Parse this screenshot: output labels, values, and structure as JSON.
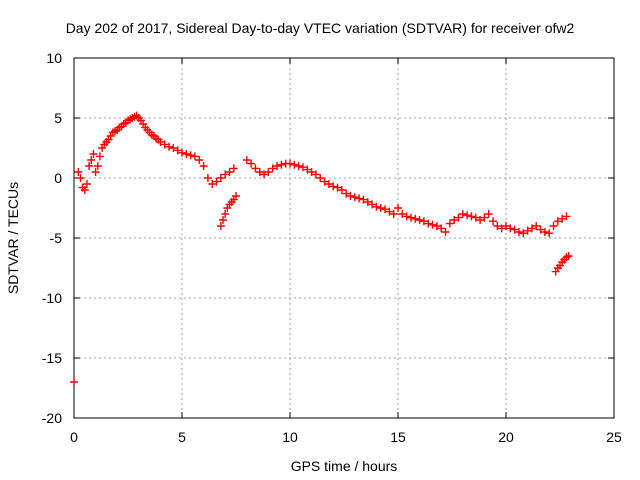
{
  "chart_data": {
    "type": "scatter",
    "title": "Day 202 of 2017, Sidereal Day-to-day VTEC variation (SDTVAR) for receiver ofw2",
    "xlabel": "GPS time / hours",
    "ylabel": "SDTVAR / TECUs",
    "xlim": [
      0,
      25
    ],
    "ylim": [
      -20,
      10
    ],
    "xticks": [
      0,
      5,
      10,
      15,
      20,
      25
    ],
    "yticks": [
      -20,
      -15,
      -10,
      -5,
      0,
      5,
      10
    ],
    "grid": true,
    "marker": "+",
    "series": [
      {
        "name": "SDTVAR",
        "color": "#ff0000",
        "x": [
          0.0,
          0.2,
          0.3,
          0.4,
          0.5,
          0.6,
          0.7,
          0.8,
          0.9,
          1.0,
          1.1,
          1.2,
          1.3,
          1.4,
          1.5,
          1.6,
          1.7,
          1.8,
          1.9,
          2.0,
          2.1,
          2.2,
          2.3,
          2.4,
          2.5,
          2.6,
          2.7,
          2.8,
          2.9,
          3.0,
          3.1,
          3.2,
          3.3,
          3.4,
          3.5,
          3.6,
          3.7,
          3.8,
          3.9,
          4.0,
          4.2,
          4.4,
          4.6,
          4.8,
          5.0,
          5.2,
          5.4,
          5.6,
          5.8,
          6.0,
          6.2,
          6.4,
          6.6,
          6.8,
          7.0,
          7.2,
          7.4,
          6.8,
          6.9,
          7.0,
          7.1,
          7.2,
          7.3,
          7.4,
          7.5,
          8.0,
          8.2,
          8.4,
          8.6,
          8.8,
          9.0,
          9.2,
          9.4,
          9.6,
          9.8,
          10.0,
          10.2,
          10.4,
          10.6,
          10.8,
          11.0,
          11.2,
          11.4,
          11.6,
          11.8,
          12.0,
          12.2,
          12.4,
          12.6,
          12.8,
          13.0,
          13.2,
          13.4,
          13.6,
          13.8,
          14.0,
          14.2,
          14.4,
          14.6,
          14.8,
          15.0,
          15.2,
          15.4,
          15.6,
          15.8,
          16.0,
          16.2,
          16.4,
          16.6,
          16.8,
          17.0,
          17.2,
          17.4,
          17.6,
          17.8,
          18.0,
          18.2,
          18.4,
          18.6,
          18.8,
          19.0,
          19.2,
          19.4,
          19.6,
          19.8,
          20.0,
          20.2,
          20.4,
          20.6,
          20.8,
          21.0,
          21.2,
          21.4,
          21.6,
          21.8,
          22.0,
          22.2,
          22.4,
          22.6,
          22.8,
          22.3,
          22.4,
          22.5,
          22.6,
          22.7,
          22.8,
          22.9
        ],
        "y": [
          -17.0,
          0.5,
          0.0,
          -0.8,
          -1.0,
          -0.5,
          1.0,
          1.5,
          2.0,
          0.5,
          1.0,
          1.8,
          2.5,
          2.8,
          3.0,
          3.2,
          3.5,
          3.8,
          3.9,
          4.0,
          4.2,
          4.3,
          4.5,
          4.6,
          4.8,
          4.9,
          5.0,
          5.1,
          5.2,
          5.0,
          4.8,
          4.5,
          4.2,
          4.0,
          3.8,
          3.6,
          3.5,
          3.3,
          3.2,
          3.0,
          2.8,
          2.6,
          2.5,
          2.3,
          2.1,
          2.0,
          1.9,
          1.8,
          1.5,
          1.0,
          0.0,
          -0.5,
          -0.3,
          0.0,
          0.3,
          0.5,
          0.8,
          -4.0,
          -3.5,
          -3.0,
          -2.5,
          -2.2,
          -2.0,
          -1.8,
          -1.5,
          1.5,
          1.2,
          0.8,
          0.5,
          0.3,
          0.5,
          0.8,
          1.0,
          1.1,
          1.2,
          1.2,
          1.1,
          1.0,
          0.9,
          0.7,
          0.5,
          0.3,
          0.0,
          -0.3,
          -0.5,
          -0.7,
          -0.8,
          -1.0,
          -1.3,
          -1.5,
          -1.6,
          -1.7,
          -1.8,
          -2.0,
          -2.2,
          -2.4,
          -2.5,
          -2.6,
          -2.8,
          -3.0,
          -2.5,
          -3.0,
          -3.2,
          -3.3,
          -3.4,
          -3.5,
          -3.6,
          -3.8,
          -3.9,
          -4.0,
          -4.2,
          -4.5,
          -3.8,
          -3.5,
          -3.3,
          -3.0,
          -3.1,
          -3.2,
          -3.3,
          -3.5,
          -3.3,
          -3.0,
          -3.6,
          -4.0,
          -4.2,
          -4.0,
          -4.2,
          -4.3,
          -4.5,
          -4.6,
          -4.4,
          -4.2,
          -4.0,
          -4.3,
          -4.5,
          -4.6,
          -4.0,
          -3.6,
          -3.4,
          -3.2,
          -7.8,
          -7.5,
          -7.3,
          -7.0,
          -6.8,
          -6.6,
          -6.5
        ]
      }
    ]
  }
}
